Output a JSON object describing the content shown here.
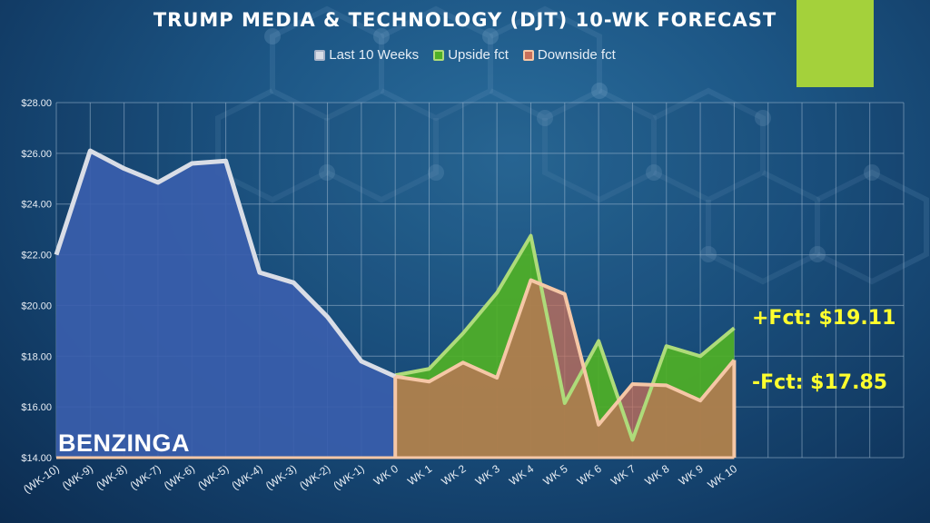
{
  "chart_data": {
    "type": "area",
    "title": "TRUMP MEDIA & TECHNOLOGY (DJT) 10-WK FORECAST",
    "categories": [
      "(WK-10)",
      "(WK-9)",
      "(WK-8)",
      "(WK-7)",
      "(WK-6)",
      "(WK-5)",
      "(WK-4)",
      "(WK-3)",
      "(WK-2)",
      "(WK-1)",
      "WK 0",
      "WK 1",
      "WK 2",
      "WK 3",
      "WK 4",
      "WK 5",
      "WK 6",
      "WK 7",
      "WK 8",
      "WK 9",
      "WK 10"
    ],
    "y_ticks": [
      "$14.00",
      "$16.00",
      "$18.00",
      "$20.00",
      "$22.00",
      "$24.00",
      "$26.00",
      "$28.00"
    ],
    "ylim": [
      14,
      28
    ],
    "grid": true,
    "legend_position": "top",
    "series": [
      {
        "name": "Last 10 Weeks",
        "color": "#3a5eac",
        "line_color": "#d9dde6",
        "values": [
          22.0,
          26.1,
          25.4,
          24.85,
          25.6,
          25.7,
          21.3,
          20.9,
          19.55,
          17.8,
          17.2,
          null,
          null,
          null,
          null,
          null,
          null,
          null,
          null,
          null,
          null
        ]
      },
      {
        "name": "Upside fct",
        "color": "#4fb026",
        "line_color": "#aedb7a",
        "values": [
          null,
          null,
          null,
          null,
          null,
          null,
          null,
          null,
          null,
          null,
          17.25,
          17.5,
          18.9,
          20.5,
          22.75,
          16.15,
          18.6,
          14.7,
          18.4,
          18.0,
          19.11
        ]
      },
      {
        "name": "Downside fct",
        "color": "#c8705a",
        "line_color": "#f5c7a6",
        "values": [
          null,
          null,
          null,
          null,
          null,
          null,
          null,
          null,
          null,
          null,
          17.2,
          17.0,
          17.75,
          17.15,
          21.0,
          20.45,
          15.3,
          16.9,
          16.85,
          16.25,
          17.85
        ]
      }
    ],
    "annotations": [
      "+Fct: $19.11",
      "-Fct: $17.85"
    ]
  },
  "legend": [
    {
      "label": "Last 10 Weeks",
      "color": "#d9dde6"
    },
    {
      "label": "Upside fct",
      "color": "#7dc948"
    },
    {
      "label": "Downside fct",
      "color": "#e89a78"
    }
  ],
  "watermark": "BENZINGA",
  "colors": {
    "accent": "#a4d13b",
    "callout": "#ffff2e",
    "grid": "#9fb8cf"
  }
}
